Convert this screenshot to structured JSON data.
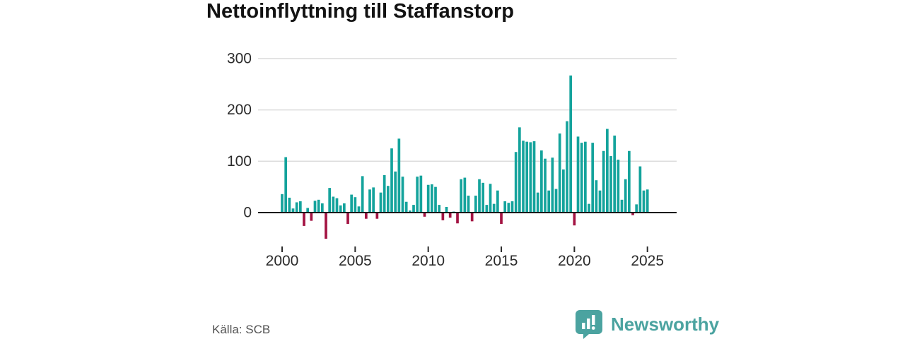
{
  "title": "Nettoinflyttning till Staffanstorp",
  "source": "Källa: SCB",
  "logo": {
    "text": "Newsworthy"
  },
  "colors": {
    "positive_bar": "#14a39c",
    "negative_bar": "#a31342",
    "gridline": "#dcdcdc",
    "zero_line": "#1a1a1a",
    "axis_text": "#2b2b2b",
    "title_text": "#121212",
    "source_text": "#525252",
    "logo_teal": "#4ba3a0"
  },
  "chart_data": {
    "type": "bar",
    "title": "Nettoinflyttning till Staffanstorp",
    "frequency": "quarterly",
    "start_period": "2000-Q1",
    "end_period": "2025-Q1",
    "ylim": [
      -60,
      310
    ],
    "yticks": [
      0,
      100,
      200,
      300
    ],
    "x_ticks": [
      2000,
      2005,
      2010,
      2015,
      2020,
      2025
    ],
    "grid": true,
    "legend": false,
    "values": [
      36,
      108,
      29,
      8,
      20,
      22,
      -26,
      9,
      -16,
      23,
      25,
      18,
      -51,
      48,
      31,
      28,
      14,
      18,
      -22,
      35,
      30,
      12,
      71,
      -12,
      45,
      49,
      -12,
      39,
      73,
      52,
      125,
      80,
      144,
      70,
      21,
      4,
      15,
      70,
      72,
      -8,
      54,
      55,
      50,
      15,
      -15,
      11,
      -10,
      2,
      -21,
      65,
      68,
      33,
      -17,
      33,
      65,
      58,
      15,
      56,
      17,
      43,
      -22,
      22,
      19,
      22,
      118,
      166,
      140,
      138,
      137,
      139,
      39,
      121,
      105,
      43,
      107,
      46,
      154,
      84,
      178,
      267,
      -25,
      148,
      136,
      138,
      17,
      136,
      63,
      43,
      120,
      163,
      110,
      150,
      103,
      25,
      65,
      120,
      -5,
      16,
      90,
      43,
      45
    ]
  }
}
